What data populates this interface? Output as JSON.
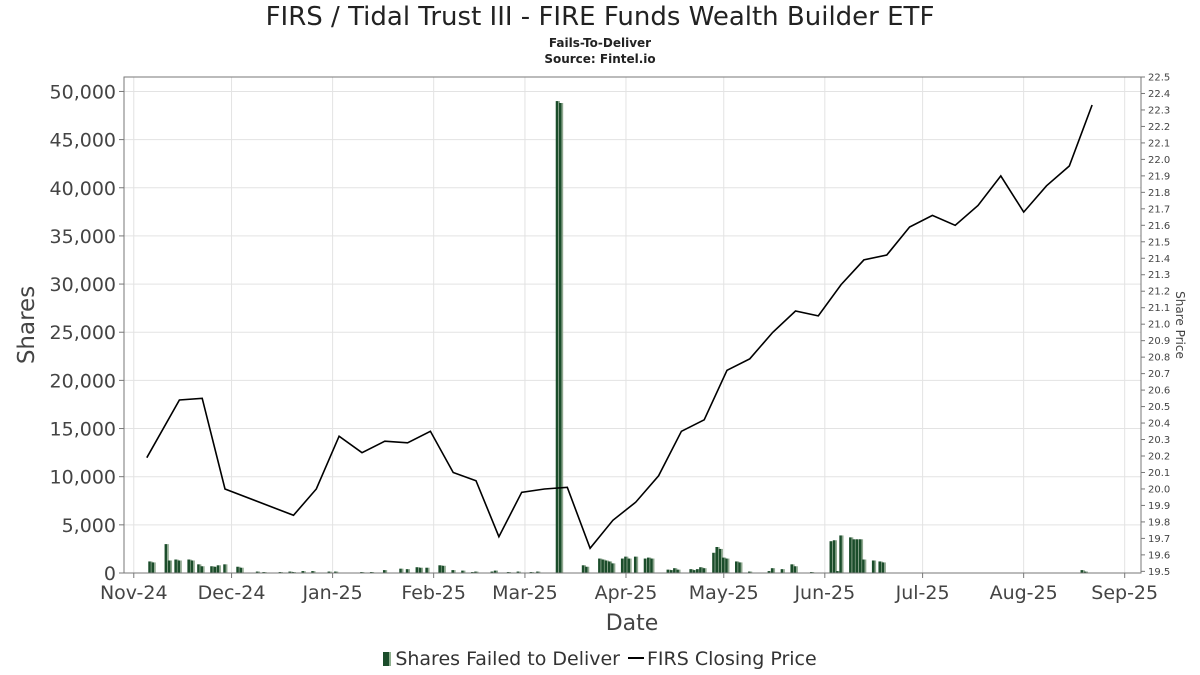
{
  "chart_data": {
    "type": "bar+line",
    "title": "FIRS / Tidal Trust III - FIRE Funds Wealth Builder ETF",
    "subtitle1": "Fails-To-Deliver",
    "subtitle2": "Source: Fintel.io",
    "xlabel": "Date",
    "ylabel_left": "Shares",
    "ylabel_right": "Share Price",
    "x_range": [
      "2024-10-29",
      "2025-09-06"
    ],
    "y_left_range": [
      0,
      51500
    ],
    "y_right_range": [
      19.49,
      22.5
    ],
    "y_left_ticks": [
      "0",
      "5,000",
      "10,000",
      "15,000",
      "20,000",
      "25,000",
      "30,000",
      "35,000",
      "40,000",
      "45,000",
      "50,000"
    ],
    "y_left_tick_values": [
      0,
      5000,
      10000,
      15000,
      20000,
      25000,
      30000,
      35000,
      40000,
      45000,
      50000
    ],
    "y_right_ticks": [
      "19.5",
      "19.6",
      "19.7",
      "19.8",
      "19.9",
      "20.0",
      "20.1",
      "20.2",
      "20.3",
      "20.4",
      "20.5",
      "20.6",
      "20.7",
      "20.8",
      "20.9",
      "21.0",
      "21.1",
      "21.2",
      "21.3",
      "21.4",
      "21.5",
      "21.6",
      "21.7",
      "21.8",
      "21.9",
      "22.0",
      "22.1",
      "22.2",
      "22.3",
      "22.4",
      "22.5"
    ],
    "x_ticks": [
      {
        "label": "Nov-24",
        "date": "2024-11-01"
      },
      {
        "label": "Dec-24",
        "date": "2024-12-01"
      },
      {
        "label": "Jan-25",
        "date": "2025-01-01"
      },
      {
        "label": "Feb-25",
        "date": "2025-02-01"
      },
      {
        "label": "Mar-25",
        "date": "2025-03-01"
      },
      {
        "label": "Apr-25",
        "date": "2025-04-01"
      },
      {
        "label": "May-25",
        "date": "2025-05-01"
      },
      {
        "label": "Jun-25",
        "date": "2025-06-01"
      },
      {
        "label": "Jul-25",
        "date": "2025-07-01"
      },
      {
        "label": "Aug-25",
        "date": "2025-08-01"
      },
      {
        "label": "Sep-25",
        "date": "2025-09-01"
      }
    ],
    "series": [
      {
        "name": "Shares Failed to Deliver",
        "type": "bar",
        "color": "#1b4d2b",
        "points": [
          [
            "2024-11-06",
            1200
          ],
          [
            "2024-11-07",
            1100
          ],
          [
            "2024-11-11",
            3000
          ],
          [
            "2024-11-12",
            1300
          ],
          [
            "2024-11-14",
            1400
          ],
          [
            "2024-11-15",
            1300
          ],
          [
            "2024-11-18",
            1400
          ],
          [
            "2024-11-19",
            1300
          ],
          [
            "2024-11-21",
            900
          ],
          [
            "2024-11-22",
            700
          ],
          [
            "2024-11-25",
            700
          ],
          [
            "2024-11-26",
            650
          ],
          [
            "2024-11-27",
            800
          ],
          [
            "2024-11-29",
            900
          ],
          [
            "2024-12-03",
            650
          ],
          [
            "2024-12-04",
            550
          ],
          [
            "2024-12-09",
            150
          ],
          [
            "2024-12-11",
            100
          ],
          [
            "2024-12-16",
            100
          ],
          [
            "2024-12-19",
            150
          ],
          [
            "2024-12-20",
            100
          ],
          [
            "2024-12-23",
            200
          ],
          [
            "2024-12-26",
            200
          ],
          [
            "2024-12-31",
            150
          ],
          [
            "2025-01-02",
            150
          ],
          [
            "2025-01-10",
            100
          ],
          [
            "2025-01-13",
            100
          ],
          [
            "2025-01-17",
            300
          ],
          [
            "2025-01-22",
            450
          ],
          [
            "2025-01-24",
            400
          ],
          [
            "2025-01-27",
            600
          ],
          [
            "2025-01-28",
            550
          ],
          [
            "2025-01-30",
            550
          ],
          [
            "2025-02-03",
            800
          ],
          [
            "2025-02-04",
            750
          ],
          [
            "2025-02-07",
            300
          ],
          [
            "2025-02-10",
            250
          ],
          [
            "2025-02-13",
            100
          ],
          [
            "2025-02-14",
            150
          ],
          [
            "2025-02-19",
            150
          ],
          [
            "2025-02-20",
            250
          ],
          [
            "2025-02-24",
            100
          ],
          [
            "2025-02-27",
            150
          ],
          [
            "2025-03-03",
            100
          ],
          [
            "2025-03-05",
            150
          ],
          [
            "2025-03-11",
            49000
          ],
          [
            "2025-03-12",
            48800
          ],
          [
            "2025-03-19",
            800
          ],
          [
            "2025-03-20",
            650
          ],
          [
            "2025-03-24",
            1500
          ],
          [
            "2025-03-25",
            1400
          ],
          [
            "2025-03-26",
            1300
          ],
          [
            "2025-03-27",
            1200
          ],
          [
            "2025-03-28",
            1000
          ],
          [
            "2025-03-31",
            1500
          ],
          [
            "2025-04-01",
            1700
          ],
          [
            "2025-04-02",
            1500
          ],
          [
            "2025-04-04",
            1700
          ],
          [
            "2025-04-07",
            1500
          ],
          [
            "2025-04-08",
            1600
          ],
          [
            "2025-04-09",
            1500
          ],
          [
            "2025-04-14",
            350
          ],
          [
            "2025-04-15",
            300
          ],
          [
            "2025-04-16",
            500
          ],
          [
            "2025-04-17",
            350
          ],
          [
            "2025-04-21",
            400
          ],
          [
            "2025-04-22",
            300
          ],
          [
            "2025-04-23",
            400
          ],
          [
            "2025-04-24",
            600
          ],
          [
            "2025-04-25",
            500
          ],
          [
            "2025-04-28",
            2100
          ],
          [
            "2025-04-29",
            2700
          ],
          [
            "2025-04-30",
            2500
          ],
          [
            "2025-05-01",
            1600
          ],
          [
            "2025-05-02",
            1500
          ],
          [
            "2025-05-05",
            1200
          ],
          [
            "2025-05-06",
            1100
          ],
          [
            "2025-05-09",
            150
          ],
          [
            "2025-05-15",
            200
          ],
          [
            "2025-05-16",
            500
          ],
          [
            "2025-05-19",
            400
          ],
          [
            "2025-05-22",
            900
          ],
          [
            "2025-05-23",
            700
          ],
          [
            "2025-05-28",
            100
          ],
          [
            "2025-06-03",
            3300
          ],
          [
            "2025-06-04",
            3400
          ],
          [
            "2025-06-05",
            200
          ],
          [
            "2025-06-06",
            3900
          ],
          [
            "2025-06-09",
            3700
          ],
          [
            "2025-06-10",
            3500
          ],
          [
            "2025-06-11",
            3500
          ],
          [
            "2025-06-12",
            3500
          ],
          [
            "2025-06-13",
            1400
          ],
          [
            "2025-06-16",
            1300
          ],
          [
            "2025-06-18",
            1200
          ],
          [
            "2025-06-19",
            1100
          ],
          [
            "2025-07-08",
            50
          ],
          [
            "2025-07-14",
            50
          ],
          [
            "2025-08-19",
            300
          ],
          [
            "2025-08-20",
            150
          ]
        ]
      },
      {
        "name": "FIRS Closing Price",
        "type": "line",
        "color": "#000000",
        "points": [
          [
            "2024-11-05",
            20.19
          ],
          [
            "2024-11-15",
            20.54
          ],
          [
            "2024-11-22",
            20.55
          ],
          [
            "2024-11-29",
            20.0
          ],
          [
            "2024-12-20",
            19.84
          ],
          [
            "2024-12-27",
            20.0
          ],
          [
            "2025-01-03",
            20.32
          ],
          [
            "2025-01-10",
            20.22
          ],
          [
            "2025-01-17",
            20.29
          ],
          [
            "2025-01-24",
            20.28
          ],
          [
            "2025-01-31",
            20.35
          ],
          [
            "2025-02-07",
            20.1
          ],
          [
            "2025-02-14",
            20.05
          ],
          [
            "2025-02-21",
            19.71
          ],
          [
            "2025-02-28",
            19.98
          ],
          [
            "2025-03-07",
            20.0
          ],
          [
            "2025-03-14",
            20.01
          ],
          [
            "2025-03-21",
            19.64
          ],
          [
            "2025-03-28",
            19.81
          ],
          [
            "2025-04-04",
            19.92
          ],
          [
            "2025-04-11",
            20.08
          ],
          [
            "2025-04-18",
            20.35
          ],
          [
            "2025-04-25",
            20.42
          ],
          [
            "2025-05-02",
            20.72
          ],
          [
            "2025-05-09",
            20.79
          ],
          [
            "2025-05-16",
            20.95
          ],
          [
            "2025-05-23",
            21.08
          ],
          [
            "2025-05-30",
            21.05
          ],
          [
            "2025-06-06",
            21.24
          ],
          [
            "2025-06-13",
            21.39
          ],
          [
            "2025-06-20",
            21.42
          ],
          [
            "2025-06-27",
            21.59
          ],
          [
            "2025-07-04",
            21.66
          ],
          [
            "2025-07-11",
            21.6
          ],
          [
            "2025-07-18",
            21.72
          ],
          [
            "2025-07-25",
            21.9
          ],
          [
            "2025-08-01",
            21.68
          ],
          [
            "2025-08-08",
            21.84
          ],
          [
            "2025-08-15",
            21.96
          ],
          [
            "2025-08-22",
            22.33
          ]
        ]
      }
    ]
  },
  "legend": {
    "bar_label": "Shares Failed to Deliver",
    "line_label": "FIRS Closing Price"
  }
}
